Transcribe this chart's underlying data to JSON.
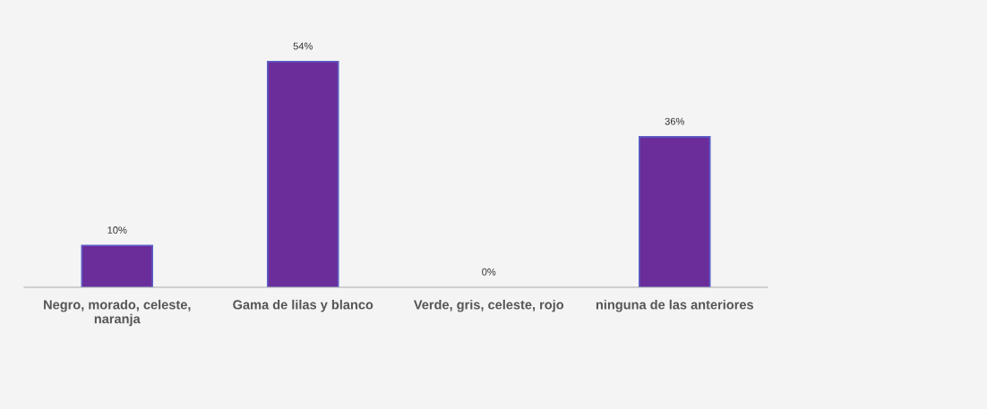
{
  "chart_data": {
    "type": "bar",
    "categories": [
      "Negro, morado, celeste,\nnaranja",
      "Gama de lilas y blanco",
      "Verde, gris, celeste, rojo",
      "ninguna de las anteriores"
    ],
    "values": [
      10,
      54,
      0,
      36
    ],
    "value_labels": [
      "10%",
      "54%",
      "0%",
      "36%"
    ],
    "color": "#6a2d9a",
    "grid": false,
    "legend": false
  }
}
